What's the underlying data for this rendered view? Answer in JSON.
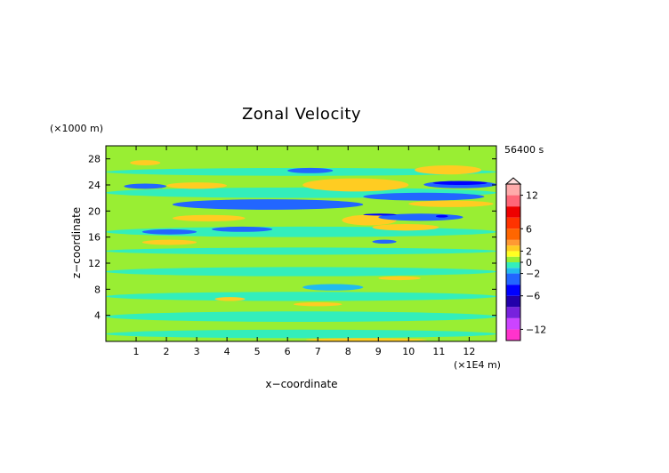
{
  "chart_data": {
    "type": "heatmap",
    "title": "Zonal Velocity",
    "xlabel": "x−coordinate",
    "ylabel": "z−coordinate",
    "x_unit": "(×1E4 m)",
    "y_unit": "(×1000 m)",
    "time_label": "56400 s",
    "xlim": [
      0,
      12.9
    ],
    "ylim": [
      0,
      30
    ],
    "x_ticks": [
      1,
      2,
      3,
      4,
      5,
      6,
      7,
      8,
      9,
      10,
      11,
      12
    ],
    "y_ticks": [
      4,
      8,
      12,
      16,
      20,
      24,
      28
    ],
    "colorbar": {
      "levels": [
        -14,
        -12,
        -10,
        -8,
        -6,
        -4,
        -2,
        -1,
        0,
        1,
        2,
        3,
        4,
        6,
        8,
        10,
        12,
        14
      ],
      "colors": [
        "#ff33cc",
        "#cc44ff",
        "#7722dd",
        "#2200aa",
        "#0000ff",
        "#2266ff",
        "#22bbee",
        "#33eebb",
        "#99ee33",
        "#ffff22",
        "#ffcc22",
        "#ff9933",
        "#ff6600",
        "#ff3300",
        "#ee0000",
        "#ff6677",
        "#ffaaaa"
      ],
      "labels": [
        "12",
        "6",
        "2",
        "0",
        "−2",
        "−6",
        "−12"
      ],
      "label_values": [
        12,
        6,
        2,
        0,
        -2,
        -6,
        -12
      ],
      "extend": "max"
    },
    "bands": [
      {
        "x": [
          0.0,
          12.9
        ],
        "z": [
          0.0,
          30.0
        ],
        "value": 0.5
      },
      {
        "x": [
          0.0,
          12.9
        ],
        "z": [
          0.5,
          1.8
        ],
        "value": -0.5
      },
      {
        "x": [
          0.0,
          12.9
        ],
        "z": [
          3.0,
          4.6
        ],
        "value": -0.5
      },
      {
        "x": [
          0.0,
          12.9
        ],
        "z": [
          6.2,
          7.6
        ],
        "value": -0.5
      },
      {
        "x": [
          0.0,
          12.9
        ],
        "z": [
          10.0,
          11.4
        ],
        "value": -0.5
      },
      {
        "x": [
          0.0,
          12.9
        ],
        "z": [
          13.3,
          14.4
        ],
        "value": -0.5
      },
      {
        "x": [
          0.0,
          12.9
        ],
        "z": [
          16.0,
          17.6
        ],
        "value": -0.5
      },
      {
        "x": [
          0.0,
          12.9
        ],
        "z": [
          22.0,
          23.6
        ],
        "value": -0.5
      },
      {
        "x": [
          0.0,
          12.9
        ],
        "z": [
          25.4,
          26.6
        ],
        "value": -0.5
      },
      {
        "x": [
          6.5,
          8.5
        ],
        "z": [
          7.8,
          8.8
        ],
        "value": -1.5
      },
      {
        "x": [
          7.8,
          9.6
        ],
        "z": [
          17.8,
          19.4
        ],
        "value": 2.5
      },
      {
        "x": [
          2.2,
          4.6
        ],
        "z": [
          18.4,
          19.4
        ],
        "value": 2.5
      },
      {
        "x": [
          2.0,
          4.0
        ],
        "z": [
          23.4,
          24.4
        ],
        "value": 2.5
      },
      {
        "x": [
          0.8,
          1.8
        ],
        "z": [
          27.0,
          27.8
        ],
        "value": 2.5
      },
      {
        "x": [
          6.5,
          10.0
        ],
        "z": [
          23.0,
          25.0
        ],
        "value": 2.5
      },
      {
        "x": [
          10.2,
          12.4
        ],
        "z": [
          25.6,
          27.0
        ],
        "value": 2.5
      },
      {
        "x": [
          10.0,
          12.8
        ],
        "z": [
          20.6,
          21.6
        ],
        "value": 2.5
      },
      {
        "x": [
          8.8,
          11.0
        ],
        "z": [
          17.0,
          18.0
        ],
        "value": 2.5
      },
      {
        "x": [
          4.6,
          6.4
        ],
        "z": [
          20.2,
          21.0
        ],
        "value": 2.5
      },
      {
        "x": [
          1.2,
          3.0
        ],
        "z": [
          14.8,
          15.6
        ],
        "value": 2.5
      },
      {
        "x": [
          6.2,
          7.8
        ],
        "z": [
          5.4,
          6.0
        ],
        "value": 2.5
      },
      {
        "x": [
          9.0,
          10.4
        ],
        "z": [
          9.4,
          10.0
        ],
        "value": 2.5
      },
      {
        "x": [
          3.6,
          4.6
        ],
        "z": [
          6.2,
          6.8
        ],
        "value": 2.5
      },
      {
        "x": [
          6.6,
          10.6
        ],
        "z": [
          0.0,
          0.5
        ],
        "value": 2.5
      },
      {
        "x": [
          2.2,
          8.5
        ],
        "z": [
          20.2,
          21.8
        ],
        "value": -2.5
      },
      {
        "x": [
          8.5,
          12.5
        ],
        "z": [
          21.6,
          22.8
        ],
        "value": -2.5
      },
      {
        "x": [
          10.5,
          12.9
        ],
        "z": [
          23.5,
          24.6
        ],
        "value": -2.5
      },
      {
        "x": [
          0.6,
          2.0
        ],
        "z": [
          23.4,
          24.2
        ],
        "value": -2.5
      },
      {
        "x": [
          9.0,
          11.8
        ],
        "z": [
          18.5,
          19.6
        ],
        "value": -2.5
      },
      {
        "x": [
          3.5,
          5.5
        ],
        "z": [
          16.8,
          17.6
        ],
        "value": -2.5
      },
      {
        "x": [
          1.2,
          3.0
        ],
        "z": [
          16.4,
          17.2
        ],
        "value": -2.5
      },
      {
        "x": [
          6.0,
          7.5
        ],
        "z": [
          25.8,
          26.6
        ],
        "value": -2.5
      },
      {
        "x": [
          8.8,
          9.6
        ],
        "z": [
          15.0,
          15.6
        ],
        "value": -2.5
      },
      {
        "x": [
          10.8,
          12.6
        ],
        "z": [
          24.0,
          24.6
        ],
        "value": -4.5
      },
      {
        "x": [
          10.9,
          11.3
        ],
        "z": [
          19.0,
          19.4
        ],
        "value": -4.5
      },
      {
        "x": [
          8.5,
          9.6
        ],
        "z": [
          19.3,
          19.6
        ],
        "value": -4.5
      }
    ]
  }
}
